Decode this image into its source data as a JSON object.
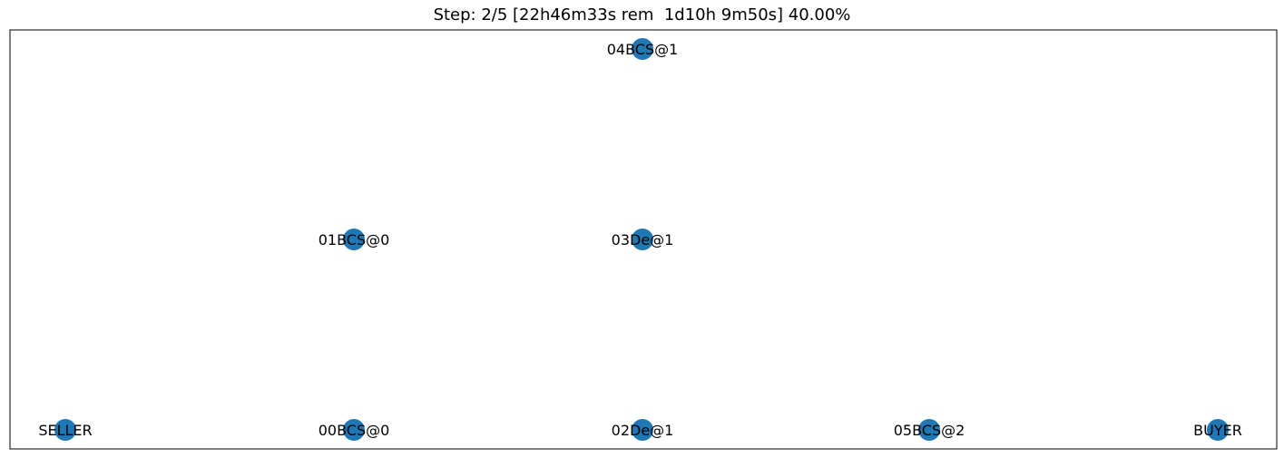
{
  "title": "Step: 2/5 [22h46m33s rem  1d10h 9m50s] 40.00%",
  "node_color": "#1f77b4",
  "frame_color": "#000000",
  "nodes": [
    {
      "id": "SELLER",
      "label": "SELLER"
    },
    {
      "id": "00BCS@0",
      "label": "00BCS@0"
    },
    {
      "id": "01BCS@0",
      "label": "01BCS@0"
    },
    {
      "id": "02De@1",
      "label": "02De@1"
    },
    {
      "id": "03De@1",
      "label": "03De@1"
    },
    {
      "id": "04BCS@1",
      "label": "04BCS@1"
    },
    {
      "id": "05BCS@2",
      "label": "05BCS@2"
    },
    {
      "id": "BUYER",
      "label": "BUYER"
    }
  ],
  "edges": []
}
